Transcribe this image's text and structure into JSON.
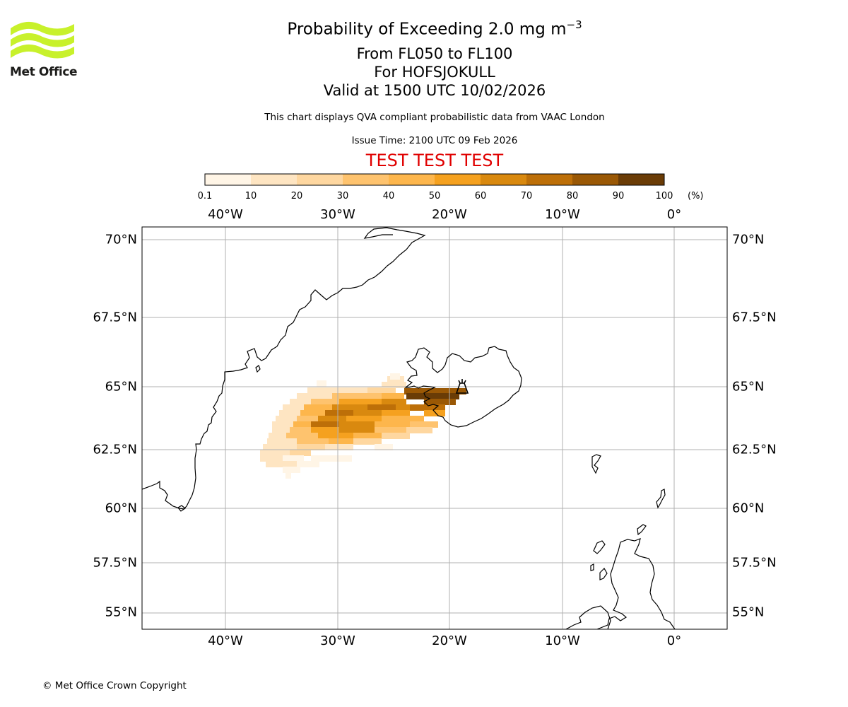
{
  "logo": {
    "text": "Met Office"
  },
  "title": {
    "main_prefix": "Probability of Exceeding 2.0 mg m",
    "main_exponent": "−3",
    "levels": "From FL050 to FL100",
    "volcano": "For HOFSJOKULL",
    "valid": "Valid at 1500 UTC 10/02/2026"
  },
  "disclaimer": "This chart displays QVA compliant probabilistic data from VAAC London",
  "issue_time": "Issue Time: 2100 UTC 09 Feb 2026",
  "test_banner": "TEST TEST TEST",
  "colorbar": {
    "ticks": [
      "0.1",
      "10",
      "20",
      "30",
      "40",
      "50",
      "60",
      "70",
      "80",
      "90",
      "100"
    ],
    "unit": "(%)",
    "colors": [
      "#fff5e6",
      "#fee5c2",
      "#fed7a0",
      "#fec36e",
      "#fdb64c",
      "#f5a11f",
      "#d9890f",
      "#bd6f08",
      "#9a5805",
      "#6a3c06"
    ]
  },
  "map": {
    "lon_labels": [
      "40°W",
      "30°W",
      "20°W",
      "10°W",
      "0°"
    ],
    "lat_labels": [
      "70°N",
      "67.5°N",
      "65°N",
      "62.5°N",
      "60°N",
      "57.5°N",
      "55°N"
    ],
    "volcano_name": "HOFSJOKULL"
  },
  "chart_data": {
    "type": "heatmap",
    "title": "Probability of Exceeding 2.0 mg m−3",
    "variable": "probability (%)",
    "projection": "polar stereographic",
    "extent_lon": [
      -47.5,
      5
    ],
    "extent_lat": [
      54.5,
      70.5
    ],
    "meridians": [
      -40,
      -30,
      -20,
      -10,
      0
    ],
    "parallels": [
      55,
      57.5,
      60,
      62.5,
      65,
      67.5,
      70
    ],
    "levels": [
      0.1,
      10,
      20,
      30,
      40,
      50,
      60,
      70,
      80,
      90,
      100
    ],
    "plume": {
      "lon_range": [
        -37,
        -19
      ],
      "lat_range": [
        61.5,
        65.2
      ],
      "max_probability_lon": [
        -24,
        -19
      ],
      "max_probability_lat": [
        64.3,
        65
      ]
    },
    "volcano": {
      "name": "HOFSJOKULL",
      "lon": -18.9,
      "lat": 64.8
    }
  }
}
